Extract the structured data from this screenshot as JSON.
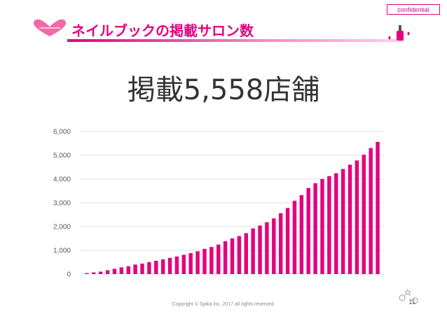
{
  "badge": "confidential",
  "header": {
    "title": "ネイルブックの掲載サロン数"
  },
  "headline": "掲載5,558店舗",
  "footer": {
    "copyright": "Copyright © Spika Inc. 2017 all rights reserved.",
    "page": "11"
  },
  "colors": {
    "accent": "#e4007f",
    "grid": "#d9d9d9",
    "axis_text": "#595959"
  },
  "chart_data": {
    "type": "bar",
    "ylim": [
      0,
      6000
    ],
    "yticks": [
      0,
      1000,
      2000,
      3000,
      4000,
      5000,
      6000
    ],
    "ytick_labels": [
      "0",
      "1,000",
      "2,000",
      "3,000",
      "4,000",
      "5,000",
      "6,000"
    ],
    "grid": true,
    "values": [
      40,
      70,
      100,
      160,
      220,
      280,
      330,
      400,
      440,
      500,
      560,
      620,
      680,
      740,
      810,
      880,
      960,
      1060,
      1140,
      1240,
      1380,
      1500,
      1600,
      1720,
      1920,
      2040,
      2180,
      2340,
      2560,
      2780,
      3080,
      3320,
      3620,
      3820,
      4000,
      4120,
      4240,
      4420,
      4600,
      4780,
      5020,
      5300,
      5558
    ]
  }
}
